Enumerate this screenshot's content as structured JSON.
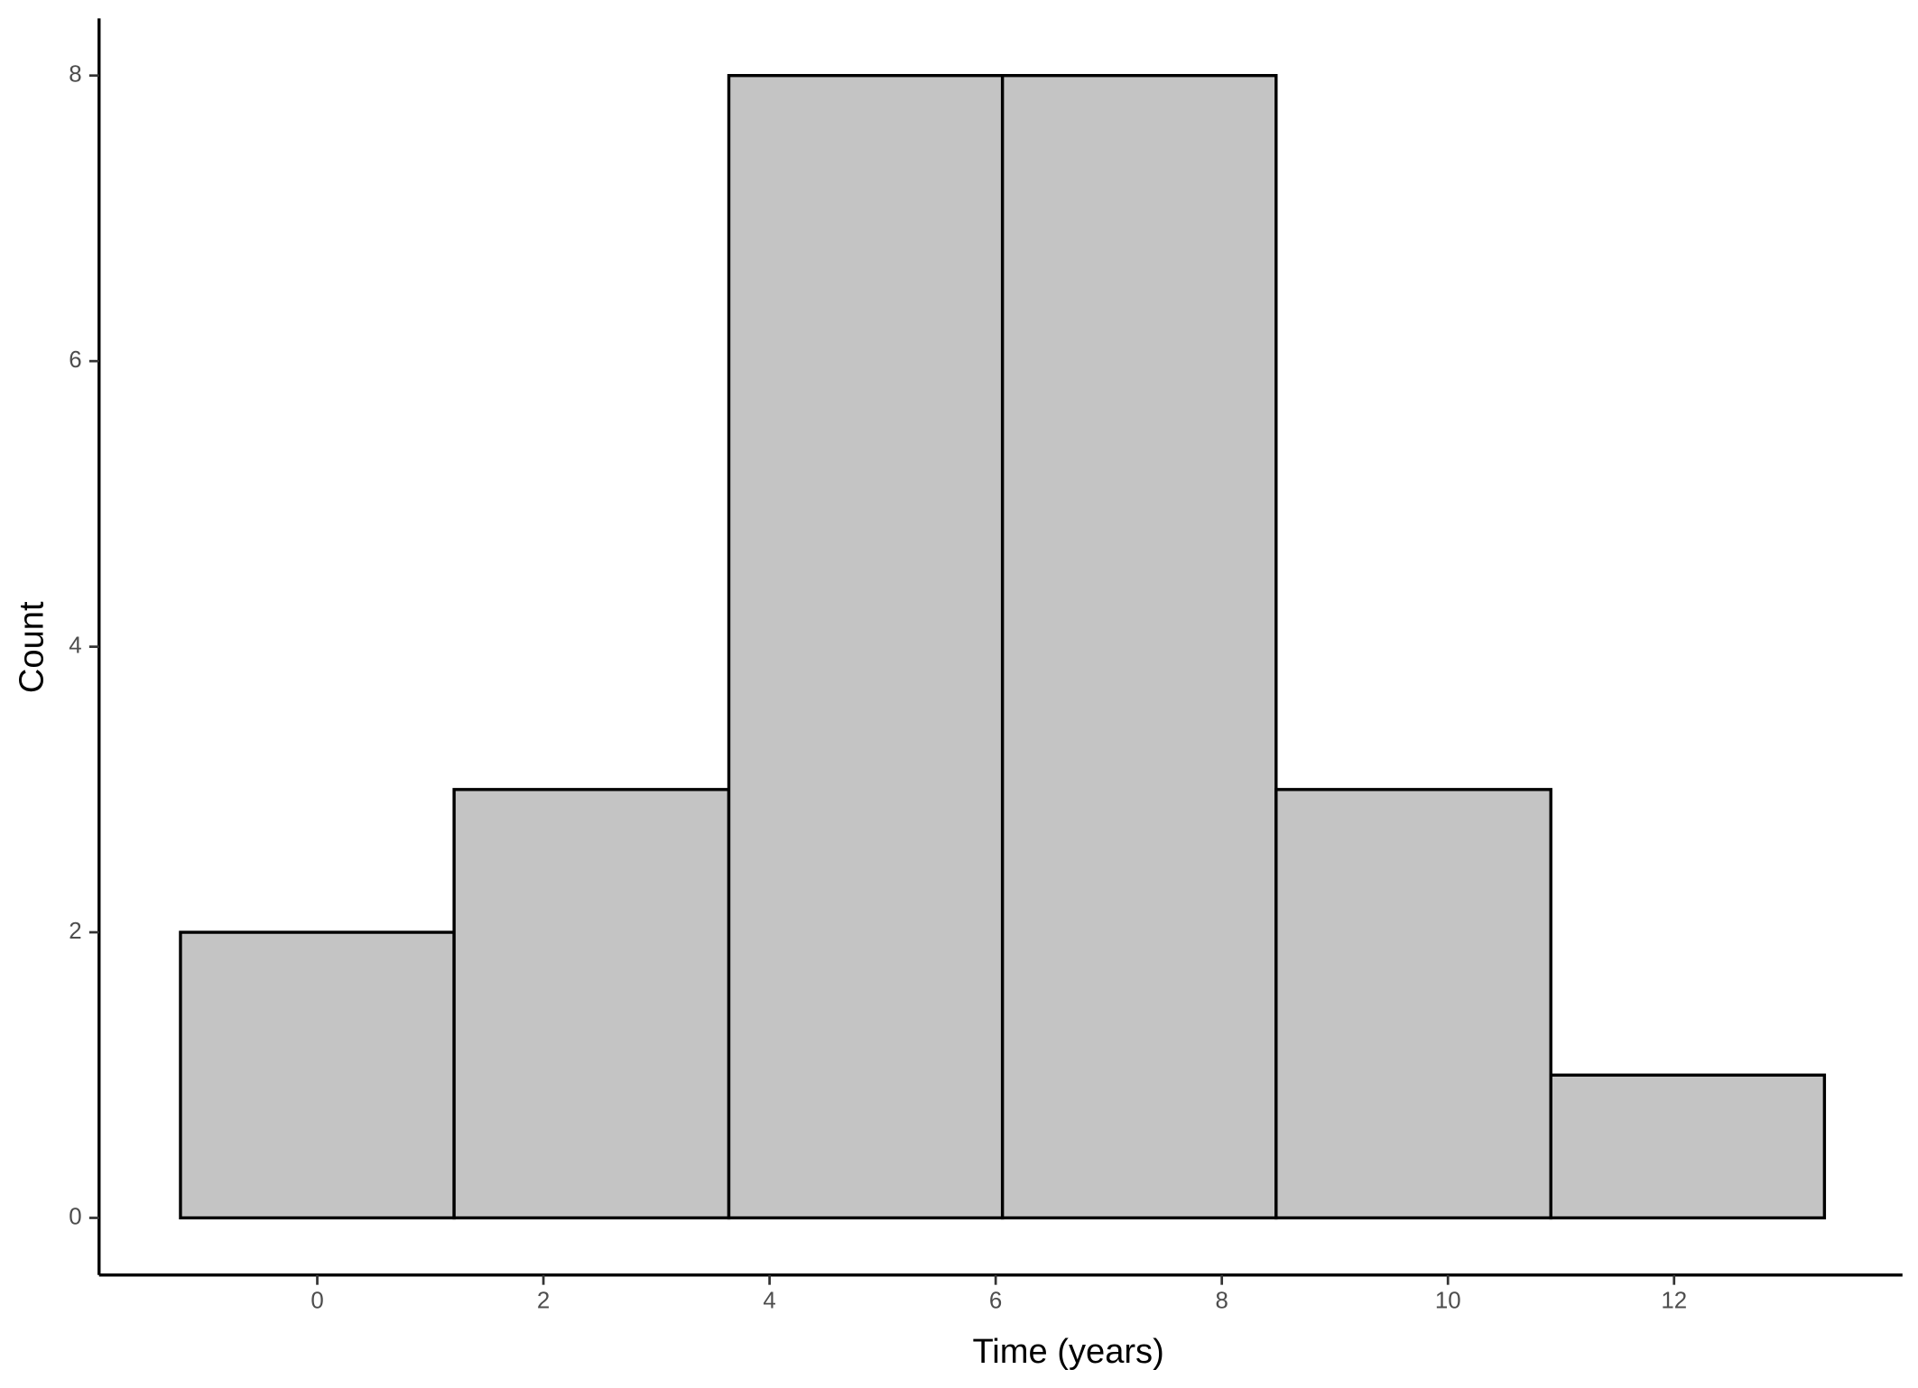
{
  "chart_data": {
    "type": "histogram",
    "xlabel": "Time (years)",
    "ylabel": "Count",
    "bins": [
      -1.21,
      1.21,
      3.64,
      6.06,
      8.48,
      10.91,
      13.33
    ],
    "counts": [
      2,
      3,
      8,
      8,
      3,
      1
    ],
    "color": "#c4c4c4",
    "edgecolor": "#000000",
    "xlim": [
      -1.93,
      14.02
    ],
    "ylim": [
      -0.4,
      8.4
    ],
    "xticks": [
      0,
      2,
      4,
      6,
      8,
      10,
      12
    ],
    "yticks": [
      0,
      2,
      4,
      6,
      8
    ],
    "grid": false
  }
}
